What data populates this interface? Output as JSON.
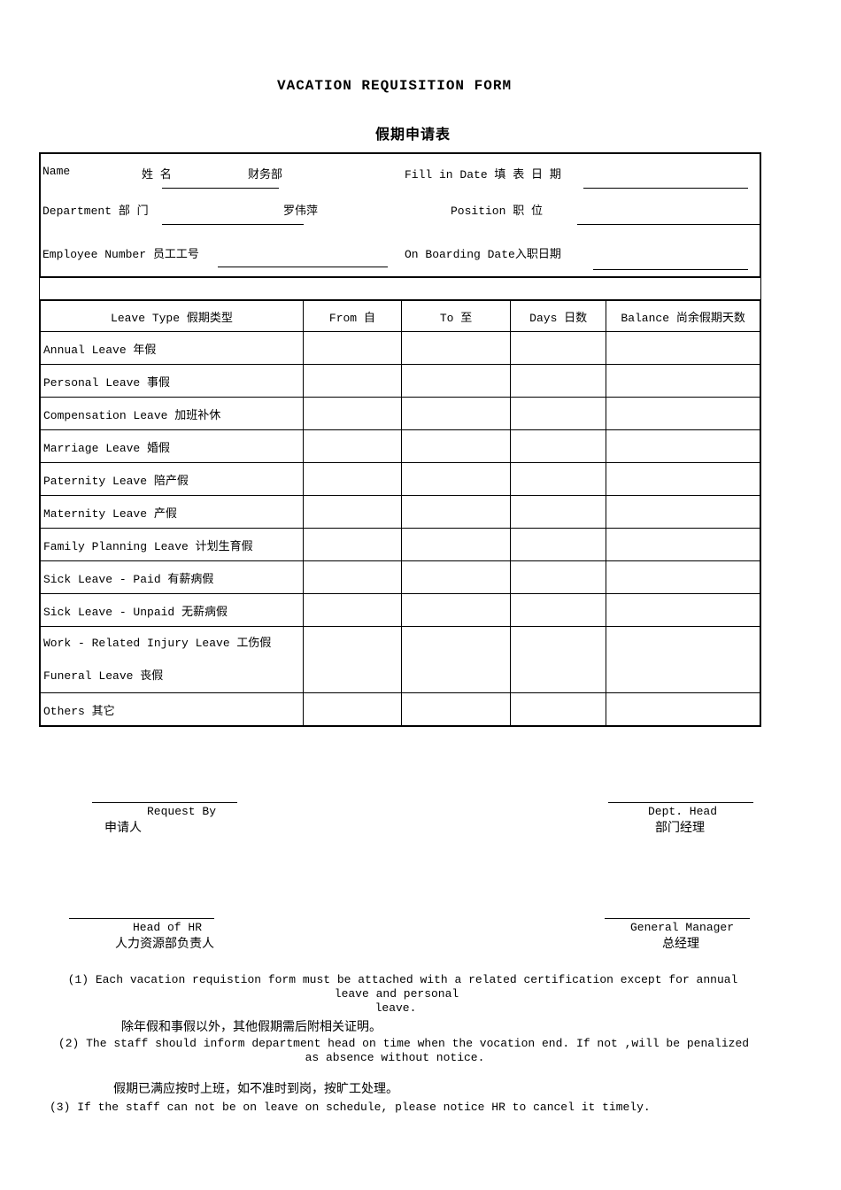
{
  "title_en": "VACATION    REQUISITION   FORM",
  "title_cn": "假期申请表",
  "info": {
    "name_label": "Name",
    "name_cn": "姓  名",
    "name_value": "财务部",
    "fill_date_label": "Fill in Date  填 表 日 期",
    "dept_label": "Department  部  门",
    "dept_value": "罗伟萍",
    "position_label": "Position 职  位",
    "emp_no_label": "Employee Number 员工工号",
    "onboard_label": "On Boarding Date入职日期"
  },
  "table": {
    "headers": [
      "Leave Type 假期类型",
      "From 自",
      "To 至",
      "Days 日数",
      "Balance 尚余假期天数"
    ],
    "rows": [
      "Annual Leave 年假",
      "Personal Leave 事假",
      "Compensation Leave 加班补休",
      "Marriage Leave 婚假",
      "Paternity Leave 陪产假",
      "Maternity Leave 产假",
      "Family Planning Leave 计划生育假",
      "Sick Leave - Paid 有薪病假",
      "Sick Leave - Unpaid 无薪病假"
    ],
    "merged_row": [
      "Work - Related Injury Leave 工伤假",
      "Funeral Leave 丧假"
    ],
    "last_row": "Others 其它"
  },
  "signatures": {
    "request_en": "Request By",
    "request_cn": "申请人",
    "dept_head_en": "Dept. Head",
    "dept_head_cn": "部门经理",
    "hr_en": "Head of  HR",
    "hr_cn": "人力资源部负责人",
    "gm_en": "General Manager",
    "gm_cn": "总经理"
  },
  "notes": {
    "n1_line1": "(1) Each vacation requistion form must be attached with a related certification except for annual",
    "n1_line2": "leave and personal",
    "n1_line3": "leave.",
    "n1_cn": "除年假和事假以外，其他假期需后附相关证明。",
    "n2_line1": "(2) The staff should inform department head on time when the vocation end. If not ,will be penalized",
    "n2_line2": "as absence without notice.",
    "n2_cn": "假期已满应按时上班，如不准时到岗，按旷工处理。",
    "n3": "(3) If the staff can not be on leave on schedule, please notice HR to cancel it timely."
  }
}
